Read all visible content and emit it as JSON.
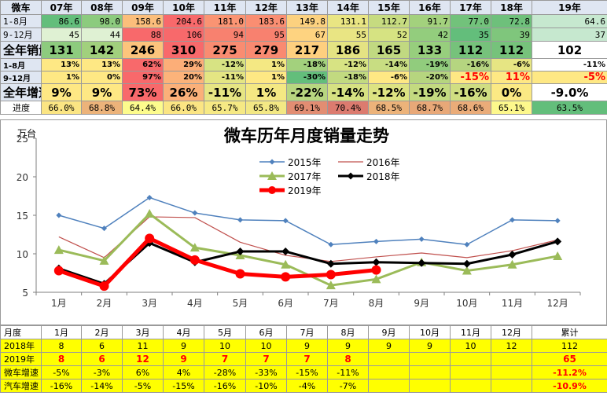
{
  "top_table": {
    "header": [
      "微车",
      "07年",
      "08年",
      "09年",
      "10年",
      "11年",
      "12年",
      "13年",
      "14年",
      "15年",
      "16年",
      "17年",
      "18年",
      "19年"
    ],
    "rows": [
      {
        "label": "1-8月",
        "values": [
          "86.6",
          "98.0",
          "158.6",
          "204.6",
          "181.0",
          "183.6",
          "149.8",
          "131.1",
          "112.7",
          "91.7",
          "77.0",
          "72.8",
          "64.6"
        ]
      },
      {
        "label": "9-12月",
        "values": [
          "45",
          "44",
          "88",
          "106",
          "94",
          "95",
          "67",
          "55",
          "52",
          "42",
          "35",
          "39",
          "37"
        ]
      },
      {
        "label": "全年销量",
        "values": [
          "131",
          "142",
          "246",
          "310",
          "275",
          "279",
          "217",
          "186",
          "165",
          "133",
          "112",
          "112",
          "102"
        ]
      },
      {
        "label": "1-8月",
        "values": [
          "13%",
          "13%",
          "62%",
          "29%",
          "-12%",
          "1%",
          "-18%",
          "-12%",
          "-14%",
          "-19%",
          "-16%",
          "-6%",
          "-11%"
        ]
      },
      {
        "label": "9-12月",
        "values": [
          "1%",
          "0%",
          "97%",
          "20%",
          "-11%",
          "1%",
          "-30%",
          "-18%",
          "-6%",
          "-20%",
          "-15%",
          "11%",
          "-5%"
        ]
      },
      {
        "label": "全年增速",
        "values": [
          "9%",
          "9%",
          "73%",
          "26%",
          "-11%",
          "1%",
          "-22%",
          "-14%",
          "-12%",
          "-19%",
          "-16%",
          "0%",
          "-9.0%"
        ]
      },
      {
        "label": "进度",
        "values": [
          "66.0%",
          "68.8%",
          "64.4%",
          "66.0%",
          "65.7%",
          "65.8%",
          "69.1%",
          "70.4%",
          "68.5%",
          "68.7%",
          "68.6%",
          "65.1%",
          "63.5%"
        ]
      }
    ],
    "colors": {
      "header": "#dfe6f2",
      "r0": [
        "#63be7b",
        "#8ccb7e",
        "#fbbe7b",
        "#f8696b",
        "#fa9473",
        "#fa8e72",
        "#fcd17f",
        "#e9e583",
        "#c6db80",
        "#a3d17d",
        "#72c27b",
        "#6ec07b",
        "#c6e8cf"
      ],
      "r1": [
        "#dff1d3",
        "#dff1d3",
        "#f8696b",
        "#f8696b",
        "#f8816f",
        "#f8816f",
        "#fed380",
        "#e9e583",
        "#d6e382",
        "#93cd7d",
        "#63be7b",
        "#7fc67c",
        "#c6e8cf"
      ],
      "r2": [
        "#8dcb7e",
        "#a1d07d",
        "#fcc47c",
        "#f8696b",
        "#f98c71",
        "#f98a71",
        "#fecf7f",
        "#e4e383",
        "#c1d981",
        "#97ce7d",
        "#76c27b",
        "#76c27b",
        "#ffffff"
      ],
      "r3": [
        "#fee884",
        "#fee884",
        "#f8696b",
        "#fcae78",
        "#d7e383",
        "#f4e883",
        "#a3d17d",
        "#d7e383",
        "#c8dd82",
        "#91cc7d",
        "#b5d580",
        "#e6e583",
        "#ffffff"
      ],
      "r4": [
        "#fee884",
        "#fee884",
        "#f8696b",
        "#fcb37a",
        "#e4e583",
        "#fee884",
        "#63be7b",
        "#c2da80",
        "#fee884",
        "#b6d57f",
        "#fee884",
        "#fee884",
        "#fee884"
      ],
      "r5": [
        "#fee884",
        "#fee884",
        "#f8696b",
        "#fbb079",
        "#e6e583",
        "#f4e883",
        "#b8d680",
        "#d6e182",
        "#dde382",
        "#c3da80",
        "#d0de82",
        "#fbe984",
        "#ffffff"
      ],
      "r6": [
        "#fbe583",
        "#ecb37a",
        "#fdfc8d",
        "#fbe583",
        "#f6e984",
        "#f3e884",
        "#e28d72",
        "#dc7b6f",
        "#ecb37a",
        "#e8a878",
        "#eaac79",
        "#fdf88c",
        "#63be7b"
      ]
    },
    "red_text": [
      [
        4,
        10
      ],
      [
        4,
        11
      ],
      [
        4,
        12
      ]
    ]
  },
  "chart_data": {
    "type": "line",
    "title": "微车历年月度销量走势",
    "unit_label": "万台",
    "categories": [
      "1月",
      "2月",
      "3月",
      "4月",
      "5月",
      "6月",
      "7月",
      "8月",
      "9月",
      "10月",
      "11月",
      "12月"
    ],
    "ylim": [
      5,
      25
    ],
    "yticks": [
      5,
      10,
      15,
      20,
      25
    ],
    "grid": false,
    "legend_position": "top-center",
    "series": [
      {
        "name": "2015年",
        "color": "#4f81bd",
        "marker": "diamond",
        "width": 1.5,
        "values": [
          15.0,
          13.3,
          17.3,
          15.3,
          14.4,
          14.3,
          11.2,
          11.6,
          11.9,
          11.2,
          14.4,
          14.3
        ]
      },
      {
        "name": "2016年",
        "color": "#c0504d",
        "marker": "none",
        "width": 1.2,
        "values": [
          12.2,
          9.5,
          14.8,
          14.7,
          11.5,
          9.8,
          9.0,
          9.6,
          10.1,
          9.5,
          10.4,
          11.8
        ]
      },
      {
        "name": "2017年",
        "color": "#9bbb59",
        "marker": "triangle",
        "width": 3,
        "values": [
          10.5,
          9.1,
          15.2,
          10.8,
          9.8,
          8.6,
          5.9,
          6.7,
          8.9,
          7.8,
          8.6,
          9.7
        ]
      },
      {
        "name": "2018年",
        "color": "#000000",
        "marker": "diamond",
        "width": 3,
        "values": [
          8.1,
          6.1,
          11.4,
          8.9,
          10.3,
          10.3,
          8.7,
          8.9,
          8.8,
          8.7,
          9.9,
          11.6
        ]
      },
      {
        "name": "2019年",
        "color": "#ff0000",
        "marker": "circle",
        "width": 5,
        "values": [
          7.8,
          5.8,
          12.0,
          9.2,
          7.4,
          7.0,
          7.3,
          7.9,
          null,
          null,
          null,
          null
        ]
      }
    ]
  },
  "bottom_table": {
    "header": [
      "月度",
      "1月",
      "2月",
      "3月",
      "4月",
      "5月",
      "6月",
      "7月",
      "8月",
      "9月",
      "10月",
      "11月",
      "12月",
      "累计"
    ],
    "rows": [
      {
        "label": "2018年",
        "values": [
          "8",
          "6",
          "11",
          "9",
          "10",
          "10",
          "9",
          "9",
          "9",
          "9",
          "10",
          "12",
          "112"
        ]
      },
      {
        "label": "2019年",
        "values": [
          "8",
          "6",
          "12",
          "9",
          "7",
          "7",
          "7",
          "8",
          "",
          "",
          "",
          "",
          "65"
        ]
      },
      {
        "label": "微车增速",
        "values": [
          "-5%",
          "-3%",
          "6%",
          "4%",
          "-28%",
          "-33%",
          "-15%",
          "-11%",
          "",
          "",
          "",
          "",
          "-11.2%"
        ]
      },
      {
        "label": "汽车增速",
        "values": [
          "-16%",
          "-14%",
          "-5%",
          "-15%",
          "-16%",
          "-10%",
          "-4%",
          "-7%",
          "",
          "",
          "",
          "",
          "-10.9%"
        ]
      }
    ]
  }
}
